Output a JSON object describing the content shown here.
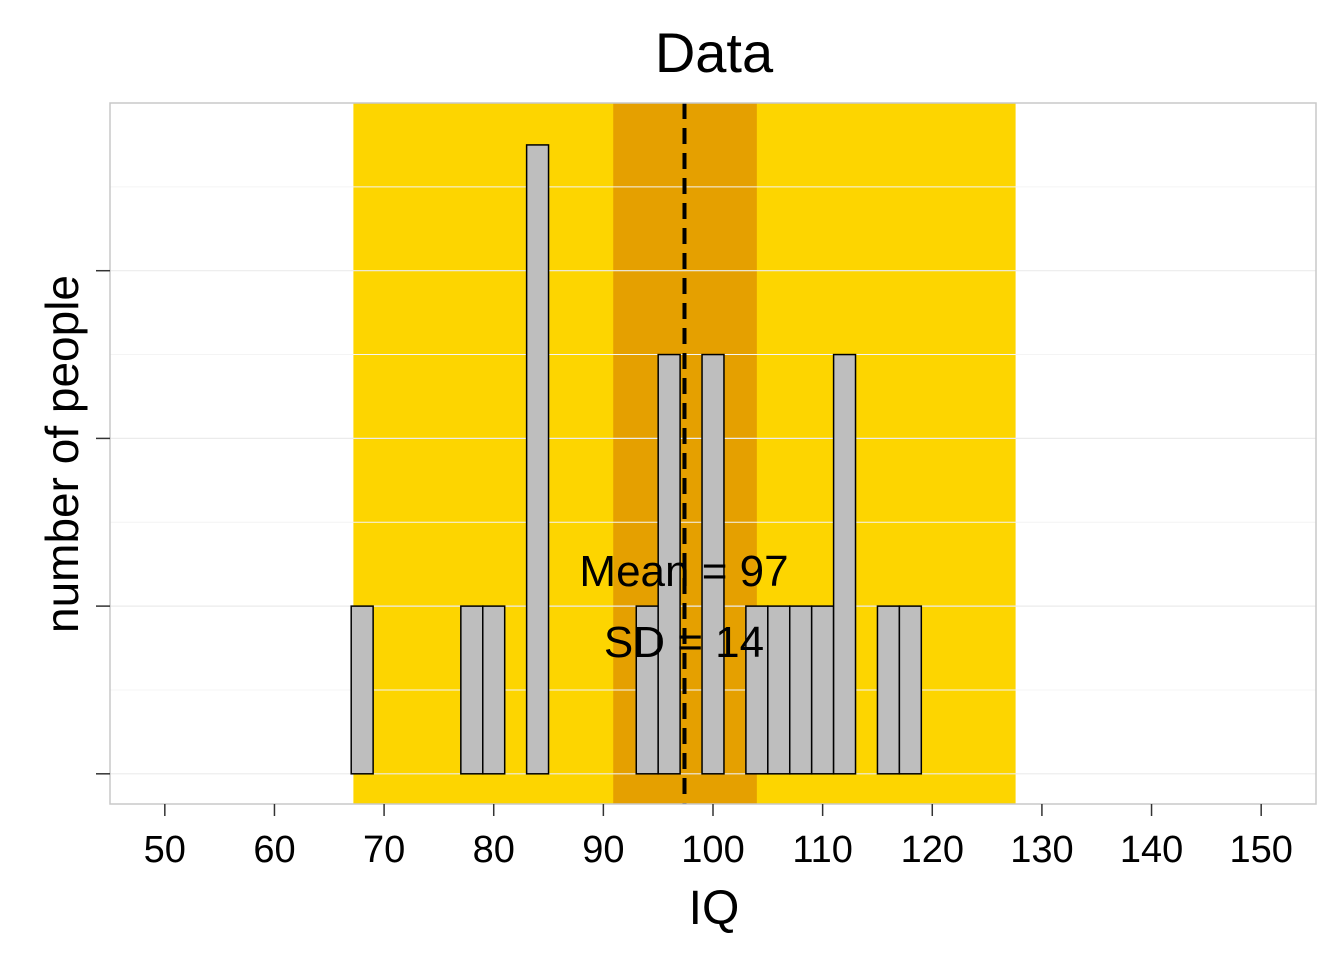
{
  "chart_data": {
    "type": "bar",
    "title": "Data",
    "xlabel": "IQ",
    "ylabel": "number of people",
    "xlim": [
      45,
      155
    ],
    "ylim": [
      -0.18,
      4.0
    ],
    "x_ticks": [
      50,
      60,
      70,
      80,
      90,
      100,
      110,
      120,
      130,
      140,
      150
    ],
    "x_tick_labels": [
      "50",
      "60",
      "70",
      "80",
      "90",
      "100",
      "110",
      "120",
      "130",
      "140",
      "150"
    ],
    "y_ticks": [
      0,
      1,
      2,
      3
    ],
    "y_tick_labels": [
      "",
      "",
      "",
      ""
    ],
    "grid": true,
    "bin_width": 2,
    "bins": [
      {
        "x0": 67,
        "x1": 69,
        "count": 1
      },
      {
        "x0": 69,
        "x1": 71,
        "count": 0
      },
      {
        "x0": 71,
        "x1": 73,
        "count": 0
      },
      {
        "x0": 73,
        "x1": 75,
        "count": 0
      },
      {
        "x0": 75,
        "x1": 77,
        "count": 0
      },
      {
        "x0": 77,
        "x1": 79,
        "count": 1
      },
      {
        "x0": 79,
        "x1": 81,
        "count": 1
      },
      {
        "x0": 81,
        "x1": 83,
        "count": 0
      },
      {
        "x0": 83,
        "x1": 85,
        "count": 3.75
      },
      {
        "x0": 85,
        "x1": 87,
        "count": 0
      },
      {
        "x0": 87,
        "x1": 89,
        "count": 0
      },
      {
        "x0": 89,
        "x1": 91,
        "count": 0
      },
      {
        "x0": 91,
        "x1": 93,
        "count": 0
      },
      {
        "x0": 93,
        "x1": 95,
        "count": 1
      },
      {
        "x0": 95,
        "x1": 97,
        "count": 2.5
      },
      {
        "x0": 97,
        "x1": 99,
        "count": 0
      },
      {
        "x0": 99,
        "x1": 101,
        "count": 2.5
      },
      {
        "x0": 101,
        "x1": 103,
        "count": 0
      },
      {
        "x0": 103,
        "x1": 105,
        "count": 1
      },
      {
        "x0": 105,
        "x1": 107,
        "count": 1
      },
      {
        "x0": 107,
        "x1": 109,
        "count": 1
      },
      {
        "x0": 109,
        "x1": 111,
        "count": 1
      },
      {
        "x0": 111,
        "x1": 113,
        "count": 2.5
      },
      {
        "x0": 113,
        "x1": 115,
        "count": 0
      },
      {
        "x0": 115,
        "x1": 117,
        "count": 1
      },
      {
        "x0": 117,
        "x1": 119,
        "count": 1
      },
      {
        "x0": 119,
        "x1": 121,
        "count": 0
      },
      {
        "x0": 121,
        "x1": 123,
        "count": 0
      },
      {
        "x0": 123,
        "x1": 125,
        "count": 0
      },
      {
        "x0": 125,
        "x1": 127,
        "count": 0
      },
      {
        "x0": 127,
        "x1": 129,
        "count": 0
      }
    ],
    "mean": 97,
    "sd": 14,
    "mean_line_x": 97.4,
    "outer_band": [
      67.2,
      127.6
    ],
    "inner_band": [
      90.9,
      104
    ],
    "annotations": [
      "Mean = 97",
      "SD = 14"
    ],
    "colors": {
      "bar_fill": "#bebebe",
      "bar_stroke": "#000000",
      "outer_band": "#fdd500",
      "inner_band": "#e5a000",
      "mean_line": "#000000",
      "grid_major": "#ebebeb",
      "grid_minor": "#f4f4f4",
      "panel_border": "#c8c8c8"
    }
  }
}
